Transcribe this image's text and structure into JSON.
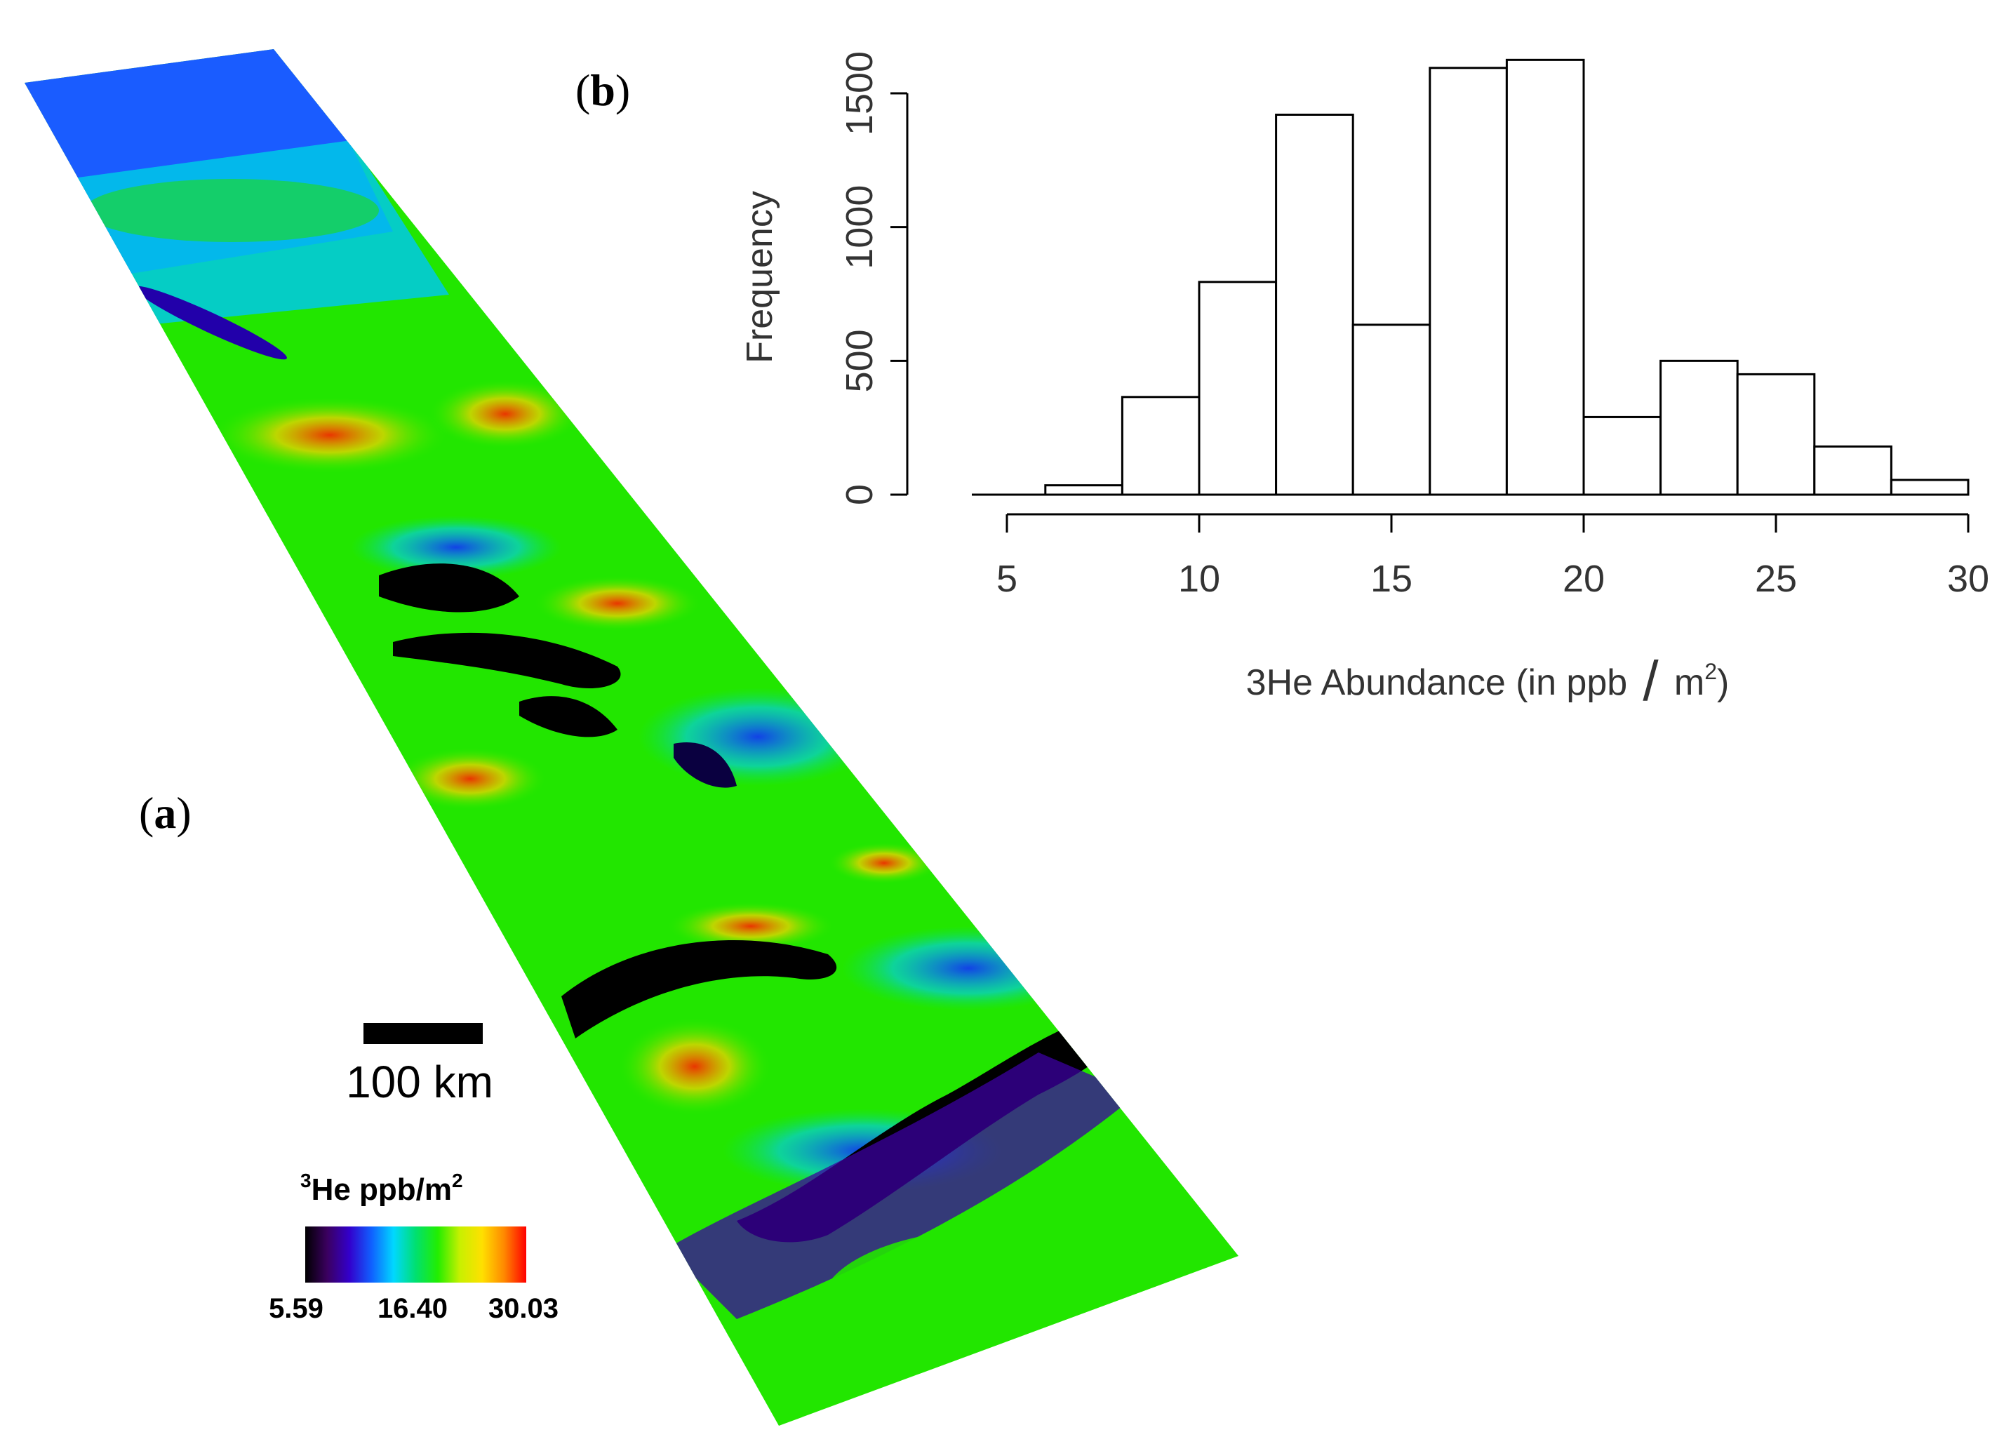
{
  "panel_a": {
    "label_open": "(",
    "label_letter": "a",
    "label_close": ")",
    "scale_bar_text": "100 km",
    "legend_title_sup": "3",
    "legend_title_main": "He ppb/m",
    "legend_title_sup2": "2",
    "legend_min": "5.59",
    "legend_mid": "16.40",
    "legend_max": "30.03",
    "colormap": [
      "#000000",
      "#3b0060",
      "#3300cc",
      "#1060ff",
      "#00d8ff",
      "#00e070",
      "#22ee00",
      "#c8f000",
      "#ffe000",
      "#ff8800",
      "#ff0000"
    ]
  },
  "panel_b": {
    "label_open": "(",
    "label_letter": "b",
    "label_close": ")"
  },
  "chart_data": {
    "type": "bar",
    "title": "",
    "xlabel_main": "3He Abundance (in ppb",
    "xlabel_unit": "m",
    "xlabel_sup": "2",
    "xlabel_close": ")",
    "ylabel": "Frequency",
    "bin_edges": [
      6,
      8,
      10,
      12,
      14,
      16,
      18,
      20,
      22,
      24,
      26,
      28,
      30
    ],
    "values": [
      35,
      365,
      795,
      1420,
      635,
      1595,
      1625,
      290,
      500,
      450,
      180,
      55
    ],
    "xlim": [
      5,
      30
    ],
    "ylim": [
      0,
      1500
    ],
    "x_ticks": [
      5,
      10,
      15,
      20,
      25,
      30
    ],
    "y_ticks": [
      0,
      500,
      1000,
      1500
    ]
  }
}
